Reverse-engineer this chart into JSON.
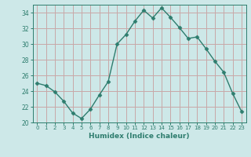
{
  "x": [
    0,
    1,
    2,
    3,
    4,
    5,
    6,
    7,
    8,
    9,
    10,
    11,
    12,
    13,
    14,
    15,
    16,
    17,
    18,
    19,
    20,
    21,
    22,
    23
  ],
  "y": [
    25.0,
    24.7,
    23.9,
    22.7,
    21.2,
    20.5,
    21.7,
    23.5,
    25.2,
    30.0,
    31.2,
    32.9,
    34.3,
    33.3,
    34.6,
    33.4,
    32.1,
    30.7,
    30.9,
    29.4,
    27.8,
    26.4,
    23.7,
    21.4
  ],
  "line_color": "#2e7d6e",
  "marker": "D",
  "marker_size": 2.5,
  "bg_color": "#cde8e8",
  "grid_color": "#c8a8a8",
  "xlabel": "Humidex (Indice chaleur)",
  "ylim": [
    20,
    35
  ],
  "xlim": [
    -0.5,
    23.5
  ],
  "yticks": [
    20,
    22,
    24,
    26,
    28,
    30,
    32,
    34
  ],
  "xticks": [
    0,
    1,
    2,
    3,
    4,
    5,
    6,
    7,
    8,
    9,
    10,
    11,
    12,
    13,
    14,
    15,
    16,
    17,
    18,
    19,
    20,
    21,
    22,
    23
  ]
}
